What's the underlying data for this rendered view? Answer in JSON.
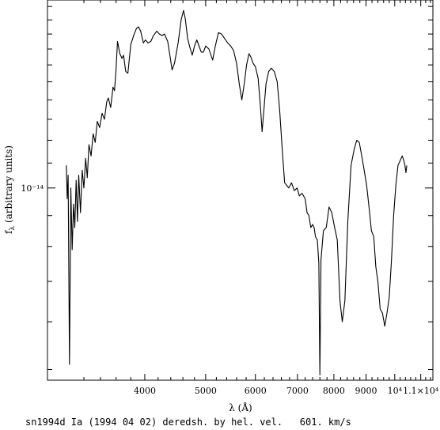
{
  "chart_data": {
    "type": "line",
    "xlabel": "λ (Å)",
    "ylabel": "f",
    "ylabel_sub": "λ",
    "ylabel_rest": " (arbitrary units)",
    "xscale": "log",
    "yscale": "log",
    "xlim": [
      2800,
      11500
    ],
    "ylim": [
      4.8e-15,
      2.05e-14
    ],
    "x_ticks": [
      {
        "value": 4000,
        "label": "4000"
      },
      {
        "value": 5000,
        "label": "5000"
      },
      {
        "value": 6000,
        "label": "6000"
      },
      {
        "value": 7000,
        "label": "7000"
      },
      {
        "value": 8000,
        "label": "8000"
      },
      {
        "value": 9000,
        "label": "9000"
      },
      {
        "value": 10000,
        "label": "10⁴"
      },
      {
        "value": 11000,
        "label": "1.1×10⁴"
      }
    ],
    "y_ticks": [
      {
        "value": 1e-14,
        "label": "10⁻¹⁴"
      }
    ],
    "y_minor_ticks": [
      5e-15,
      6e-15,
      7e-15,
      8e-15,
      9e-15,
      1.1e-14,
      1.2e-14,
      1.3e-14,
      1.4e-14,
      1.5e-14,
      1.6e-14,
      1.7e-14,
      1.8e-14,
      1.9e-14,
      2e-14
    ],
    "grid": false,
    "series": [
      {
        "color": "#000000",
        "points": [
          [
            3000,
            1.09e-14
          ],
          [
            3010,
            9.6e-15
          ],
          [
            3020,
            1.05e-14
          ],
          [
            3035,
            5.1e-15
          ],
          [
            3050,
            1e-14
          ],
          [
            3065,
            7.9e-15
          ],
          [
            3080,
            9.4e-15
          ],
          [
            3095,
            8.6e-15
          ],
          [
            3110,
            1.03e-14
          ],
          [
            3125,
            8.8e-15
          ],
          [
            3140,
            1.05e-14
          ],
          [
            3160,
            9.1e-15
          ],
          [
            3180,
            1.07e-14
          ],
          [
            3200,
            1e-14
          ],
          [
            3220,
            1.12e-14
          ],
          [
            3240,
            1.04e-14
          ],
          [
            3260,
            1.18e-14
          ],
          [
            3285,
            1.13e-14
          ],
          [
            3310,
            1.23e-14
          ],
          [
            3335,
            1.19e-14
          ],
          [
            3360,
            1.29e-14
          ],
          [
            3390,
            1.26e-14
          ],
          [
            3420,
            1.33e-14
          ],
          [
            3450,
            1.3e-14
          ],
          [
            3480,
            1.39e-14
          ],
          [
            3500,
            1.41e-14
          ],
          [
            3530,
            1.36e-14
          ],
          [
            3560,
            1.47e-14
          ],
          [
            3580,
            1.45e-14
          ],
          [
            3600,
            1.57e-14
          ],
          [
            3620,
            1.75e-14
          ],
          [
            3650,
            1.67e-14
          ],
          [
            3680,
            1.64e-14
          ],
          [
            3700,
            1.66e-14
          ],
          [
            3730,
            1.56e-14
          ],
          [
            3760,
            1.55e-14
          ],
          [
            3800,
            1.73e-14
          ],
          [
            3840,
            1.79e-14
          ],
          [
            3880,
            1.84e-14
          ],
          [
            3910,
            1.85e-14
          ],
          [
            3940,
            1.82e-14
          ],
          [
            3980,
            1.74e-14
          ],
          [
            4010,
            1.76e-14
          ],
          [
            4050,
            1.74e-14
          ],
          [
            4090,
            1.75e-14
          ],
          [
            4130,
            1.79e-14
          ],
          [
            4180,
            1.82e-14
          ],
          [
            4220,
            1.8e-14
          ],
          [
            4260,
            1.79e-14
          ],
          [
            4300,
            1.8e-14
          ],
          [
            4350,
            1.75e-14
          ],
          [
            4390,
            1.65e-14
          ],
          [
            4420,
            1.57e-14
          ],
          [
            4460,
            1.61e-14
          ],
          [
            4520,
            1.74e-14
          ],
          [
            4570,
            1.9e-14
          ],
          [
            4610,
            1.97e-14
          ],
          [
            4640,
            1.91e-14
          ],
          [
            4680,
            1.77e-14
          ],
          [
            4720,
            1.71e-14
          ],
          [
            4760,
            1.66e-14
          ],
          [
            4800,
            1.72e-14
          ],
          [
            4840,
            1.76e-14
          ],
          [
            4880,
            1.72e-14
          ],
          [
            4920,
            1.68e-14
          ],
          [
            4960,
            1.68e-14
          ],
          [
            5000,
            1.72e-14
          ],
          [
            5060,
            1.7e-14
          ],
          [
            5130,
            1.63e-14
          ],
          [
            5180,
            1.72e-14
          ],
          [
            5240,
            1.81e-14
          ],
          [
            5300,
            1.8e-14
          ],
          [
            5360,
            1.77e-14
          ],
          [
            5420,
            1.74e-14
          ],
          [
            5480,
            1.72e-14
          ],
          [
            5540,
            1.69e-14
          ],
          [
            5600,
            1.61e-14
          ],
          [
            5660,
            1.48e-14
          ],
          [
            5710,
            1.4e-14
          ],
          [
            5760,
            1.49e-14
          ],
          [
            5810,
            1.6e-14
          ],
          [
            5860,
            1.67e-14
          ],
          [
            5900,
            1.65e-14
          ],
          [
            5950,
            1.61e-14
          ],
          [
            6000,
            1.59e-14
          ],
          [
            6060,
            1.52e-14
          ],
          [
            6110,
            1.37e-14
          ],
          [
            6150,
            1.24e-14
          ],
          [
            6190,
            1.35e-14
          ],
          [
            6240,
            1.49e-14
          ],
          [
            6300,
            1.56e-14
          ],
          [
            6360,
            1.58e-14
          ],
          [
            6430,
            1.56e-14
          ],
          [
            6500,
            1.5e-14
          ],
          [
            6560,
            1.34e-14
          ],
          [
            6620,
            1.16e-14
          ],
          [
            6680,
            1.02e-14
          ],
          [
            6730,
            1.01e-14
          ],
          [
            6780,
            1e-14
          ],
          [
            6850,
            1.02e-14
          ],
          [
            6920,
            9.9e-15
          ],
          [
            6990,
            1e-14
          ],
          [
            7050,
            9.7e-15
          ],
          [
            7120,
            9.8e-15
          ],
          [
            7200,
            9.6e-15
          ],
          [
            7250,
            9.1e-15
          ],
          [
            7300,
            9e-15
          ],
          [
            7350,
            8.6e-15
          ],
          [
            7400,
            8.7e-15
          ],
          [
            7440,
            8.6e-15
          ],
          [
            7480,
            8.3e-15
          ],
          [
            7530,
            8.2e-15
          ],
          [
            7570,
            7.5e-15
          ],
          [
            7600,
            4.9e-15
          ],
          [
            7630,
            7.6e-15
          ],
          [
            7700,
            8.5e-15
          ],
          [
            7780,
            8.6e-15
          ],
          [
            7860,
            9.3e-15
          ],
          [
            7940,
            9.1e-15
          ],
          [
            8020,
            8.6e-15
          ],
          [
            8100,
            8.2e-15
          ],
          [
            8180,
            6.5e-15
          ],
          [
            8250,
            6e-15
          ],
          [
            8330,
            6.5e-15
          ],
          [
            8420,
            8.8e-15
          ],
          [
            8520,
            1.09e-14
          ],
          [
            8620,
            1.16e-14
          ],
          [
            8700,
            1.2e-14
          ],
          [
            8780,
            1.19e-14
          ],
          [
            8860,
            1.13e-14
          ],
          [
            8940,
            1.07e-14
          ],
          [
            9020,
            1.01e-14
          ],
          [
            9100,
            9.3e-15
          ],
          [
            9180,
            8.5e-15
          ],
          [
            9260,
            8.3e-15
          ],
          [
            9330,
            7.4e-15
          ],
          [
            9400,
            7e-15
          ],
          [
            9480,
            6.3e-15
          ],
          [
            9560,
            6.2e-15
          ],
          [
            9640,
            5.9e-15
          ],
          [
            9720,
            6.2e-15
          ],
          [
            9800,
            6.6e-15
          ],
          [
            9880,
            7.6e-15
          ],
          [
            9960,
            9e-15
          ],
          [
            10040,
            1.01e-14
          ],
          [
            10120,
            1.09e-14
          ],
          [
            10200,
            1.11e-14
          ],
          [
            10280,
            1.13e-14
          ],
          [
            10340,
            1.11e-14
          ],
          [
            10380,
            1.09e-14
          ],
          [
            10420,
            1.06e-14
          ],
          [
            10450,
            1.09e-14
          ]
        ]
      }
    ]
  },
  "caption": "sn1994d Ia (1994 04 02) deredsh. by hel. vel.   601. km/s"
}
